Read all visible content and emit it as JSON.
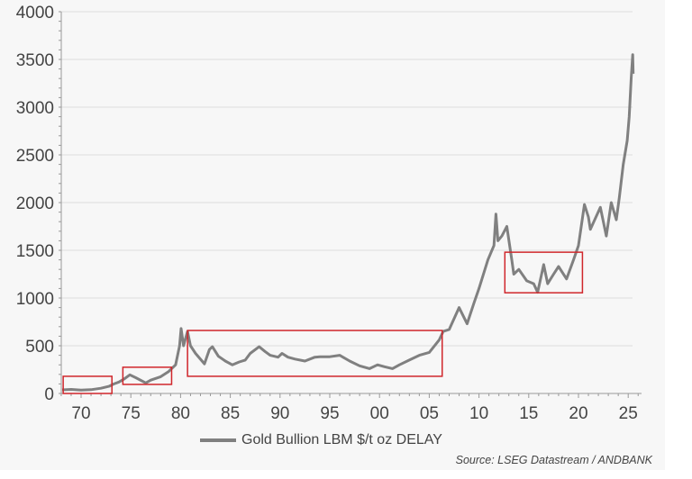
{
  "chart_data": {
    "type": "line",
    "title": "",
    "xlabel": "",
    "ylabel": "",
    "xlim": [
      1968,
      2026.3
    ],
    "ylim": [
      0,
      4000
    ],
    "grid": true,
    "y_ticks": [
      "0",
      "500",
      "1000",
      "1500",
      "2000",
      "2500",
      "3000",
      "3500",
      "4000"
    ],
    "y_tick_values": [
      0,
      500,
      1000,
      1500,
      2000,
      2500,
      3000,
      3500,
      4000
    ],
    "x_ticks": [
      "70",
      "75",
      "80",
      "85",
      "90",
      "95",
      "00",
      "05",
      "10",
      "15",
      "20",
      "25"
    ],
    "x_tick_values": [
      1970,
      1975,
      1980,
      1985,
      1990,
      1995,
      2000,
      2005,
      2010,
      2015,
      2020,
      2025
    ],
    "series": [
      {
        "name": "Gold Bullion LBM $/t oz DELAY",
        "color": "#808080",
        "points": [
          [
            1968.1,
            38
          ],
          [
            1969,
            42
          ],
          [
            1970,
            36
          ],
          [
            1971,
            40
          ],
          [
            1972,
            55
          ],
          [
            1972.8,
            75
          ],
          [
            1973.3,
            100
          ],
          [
            1973.8,
            120
          ],
          [
            1974.3,
            150
          ],
          [
            1974.9,
            195
          ],
          [
            1975.5,
            165
          ],
          [
            1976.5,
            110
          ],
          [
            1977,
            140
          ],
          [
            1978,
            175
          ],
          [
            1978.8,
            230
          ],
          [
            1979.5,
            300
          ],
          [
            1979.9,
            500
          ],
          [
            1980.05,
            680
          ],
          [
            1980.3,
            500
          ],
          [
            1980.7,
            650
          ],
          [
            1981,
            500
          ],
          [
            1981.5,
            420
          ],
          [
            1982.4,
            310
          ],
          [
            1982.9,
            460
          ],
          [
            1983.2,
            490
          ],
          [
            1983.8,
            390
          ],
          [
            1984.5,
            340
          ],
          [
            1985.2,
            300
          ],
          [
            1985.9,
            330
          ],
          [
            1986.5,
            350
          ],
          [
            1987,
            420
          ],
          [
            1987.9,
            490
          ],
          [
            1988.5,
            440
          ],
          [
            1989,
            400
          ],
          [
            1989.8,
            380
          ],
          [
            1990.2,
            420
          ],
          [
            1990.8,
            380
          ],
          [
            1991.5,
            360
          ],
          [
            1992.5,
            340
          ],
          [
            1993.5,
            380
          ],
          [
            1994,
            385
          ],
          [
            1995,
            385
          ],
          [
            1996,
            400
          ],
          [
            1997,
            340
          ],
          [
            1998,
            290
          ],
          [
            1999,
            260
          ],
          [
            1999.8,
            300
          ],
          [
            2000.5,
            280
          ],
          [
            2001.3,
            260
          ],
          [
            2002,
            300
          ],
          [
            2003,
            350
          ],
          [
            2004,
            400
          ],
          [
            2005,
            430
          ],
          [
            2006,
            560
          ],
          [
            2006.4,
            650
          ],
          [
            2007,
            670
          ],
          [
            2008,
            900
          ],
          [
            2008.8,
            730
          ],
          [
            2009.5,
            950
          ],
          [
            2010,
            1100
          ],
          [
            2010.9,
            1400
          ],
          [
            2011.5,
            1550
          ],
          [
            2011.7,
            1880
          ],
          [
            2011.9,
            1600
          ],
          [
            2012.3,
            1650
          ],
          [
            2012.8,
            1750
          ],
          [
            2013.3,
            1400
          ],
          [
            2013.5,
            1250
          ],
          [
            2014,
            1300
          ],
          [
            2014.8,
            1180
          ],
          [
            2015.5,
            1150
          ],
          [
            2015.9,
            1060
          ],
          [
            2016.5,
            1350
          ],
          [
            2016.9,
            1150
          ],
          [
            2017.5,
            1250
          ],
          [
            2018,
            1330
          ],
          [
            2018.8,
            1200
          ],
          [
            2019.5,
            1400
          ],
          [
            2020,
            1550
          ],
          [
            2020.6,
            1980
          ],
          [
            2021,
            1850
          ],
          [
            2021.2,
            1720
          ],
          [
            2022.2,
            1950
          ],
          [
            2022.8,
            1650
          ],
          [
            2023.3,
            2000
          ],
          [
            2023.8,
            1820
          ],
          [
            2024.1,
            2050
          ],
          [
            2024.5,
            2400
          ],
          [
            2024.9,
            2650
          ],
          [
            2025.1,
            2900
          ],
          [
            2025.3,
            3300
          ],
          [
            2025.45,
            3550
          ],
          [
            2025.5,
            3350
          ]
        ]
      }
    ],
    "annotations": [
      {
        "type": "box",
        "color": "#d0262b",
        "x": [
          1968.2,
          1973.1
        ],
        "y": [
          0,
          180
        ]
      },
      {
        "type": "box",
        "color": "#d0262b",
        "x": [
          1974.2,
          1979.1
        ],
        "y": [
          95,
          275
        ]
      },
      {
        "type": "box",
        "color": "#d0262b",
        "x": [
          1980.7,
          2006.3
        ],
        "y": [
          180,
          660
        ]
      },
      {
        "type": "box",
        "color": "#d0262b",
        "x": [
          2012.6,
          2020.4
        ],
        "y": [
          1055,
          1480
        ]
      }
    ],
    "legend": {
      "placement": "bottom-center",
      "label": "Gold Bullion LBM $/t oz DELAY"
    },
    "source": "Source: LSEG Datastream / ANDBANK"
  }
}
